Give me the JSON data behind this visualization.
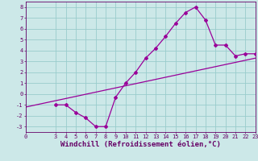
{
  "xlabel": "Windchill (Refroidissement éolien,°C)",
  "ylabel": "",
  "background_color": "#cce8e8",
  "line_color": "#990099",
  "grid_color": "#99cccc",
  "xlim": [
    0,
    23
  ],
  "ylim": [
    -3.5,
    8.5
  ],
  "yticks": [
    -3,
    -2,
    -1,
    0,
    1,
    2,
    3,
    4,
    5,
    6,
    7,
    8
  ],
  "xticks": [
    0,
    3,
    4,
    5,
    6,
    7,
    8,
    9,
    10,
    11,
    12,
    13,
    14,
    15,
    16,
    17,
    18,
    19,
    20,
    21,
    22,
    23
  ],
  "curve_x": [
    3,
    4,
    5,
    6,
    7,
    8,
    9,
    10,
    11,
    12,
    13,
    14,
    15,
    16,
    17,
    18,
    19,
    20,
    21,
    22,
    23
  ],
  "curve_y": [
    -1,
    -1,
    -1.7,
    -2.2,
    -3.0,
    -3.0,
    -0.3,
    1.0,
    2.0,
    3.3,
    4.2,
    5.3,
    6.5,
    7.5,
    8.0,
    6.8,
    4.5,
    4.5,
    3.5,
    3.7,
    3.7
  ],
  "line_x": [
    0,
    23
  ],
  "line_y": [
    -1.2,
    3.3
  ],
  "marker": "D",
  "marker_size": 2.0,
  "line_width": 0.9,
  "font_color": "#660066",
  "tick_fontsize": 5.0,
  "xlabel_fontsize": 6.5
}
